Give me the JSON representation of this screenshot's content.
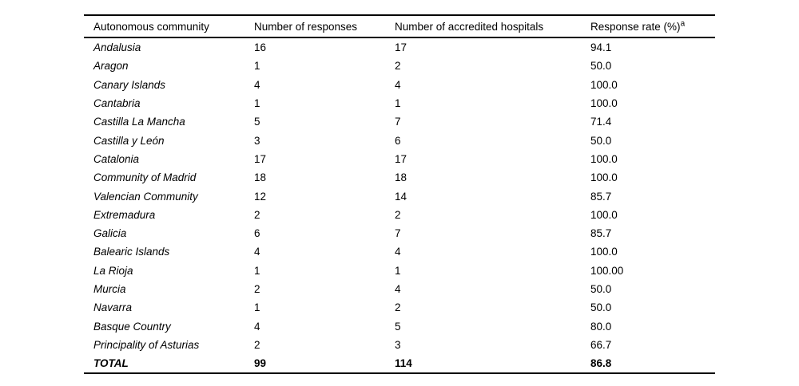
{
  "page": {
    "background": "#ffffff",
    "text_color": "#000000",
    "rule_color": "#000000"
  },
  "table": {
    "headers": [
      {
        "label": "Autonomous community"
      },
      {
        "label": "Number of responses"
      },
      {
        "label": "Number of accredited hospitals"
      },
      {
        "label": "Response rate (%)",
        "superscript": "a"
      }
    ],
    "rows": [
      [
        "Andalusia",
        "16",
        "17",
        "94.1"
      ],
      [
        "Aragon",
        "1",
        "2",
        "50.0"
      ],
      [
        "Canary Islands",
        "4",
        "4",
        "100.0"
      ],
      [
        "Cantabria",
        "1",
        "1",
        "100.0"
      ],
      [
        "Castilla La Mancha",
        "5",
        "7",
        "71.4"
      ],
      [
        "Castilla y León",
        "3",
        "6",
        "50.0"
      ],
      [
        "Catalonia",
        "17",
        "17",
        "100.0"
      ],
      [
        "Community of Madrid",
        "18",
        "18",
        "100.0"
      ],
      [
        "Valencian Community",
        "12",
        "14",
        "85.7"
      ],
      [
        "Extremadura",
        "2",
        "2",
        "100.0"
      ],
      [
        "Galicia",
        "6",
        "7",
        "85.7"
      ],
      [
        "Balearic Islands",
        "4",
        "4",
        "100.0"
      ],
      [
        "La Rioja",
        "1",
        "1",
        "100.00"
      ],
      [
        "Murcia",
        "2",
        "4",
        "50.0"
      ],
      [
        "Navarra",
        "1",
        "2",
        "50.0"
      ],
      [
        "Basque Country",
        "4",
        "5",
        "80.0"
      ],
      [
        "Principality of Asturias",
        "2",
        "3",
        "66.7"
      ]
    ],
    "total": [
      "TOTAL",
      "99",
      "114",
      "86.8"
    ]
  }
}
